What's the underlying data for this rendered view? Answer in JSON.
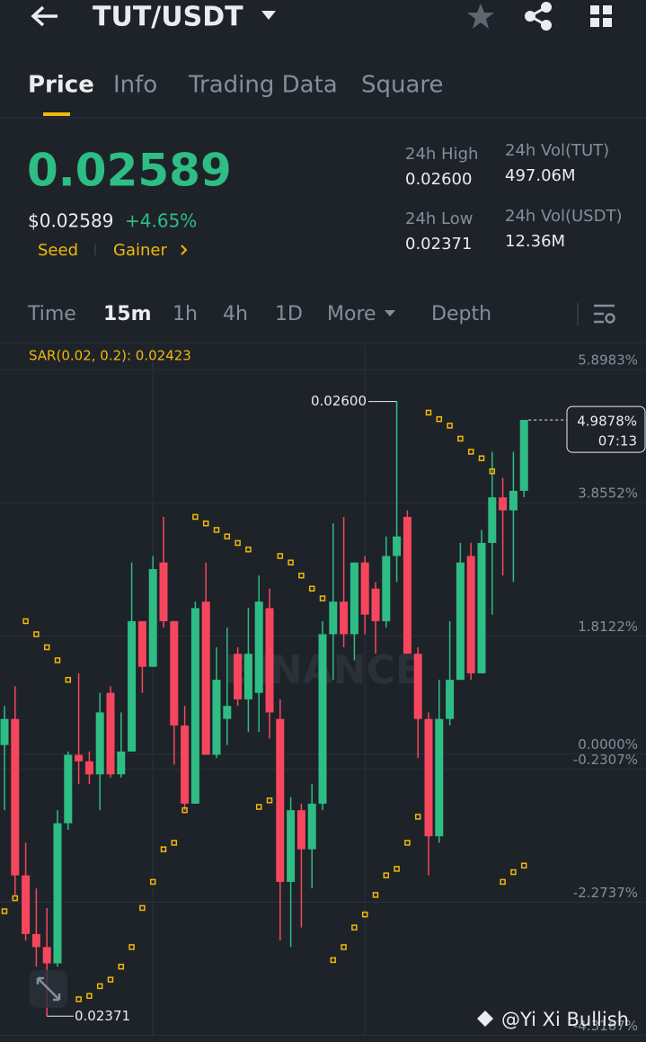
{
  "header": {
    "title": "TUT/USDT"
  },
  "tabs": [
    "Price",
    "Info",
    "Trading Data",
    "Square"
  ],
  "price": {
    "last": "0.02589",
    "usd": "$0.02589",
    "change": "+4.65%",
    "tags": [
      "Seed",
      "Gainer"
    ],
    "stats": [
      {
        "label": "24h High",
        "value": "0.02600"
      },
      {
        "label": "24h Vol(TUT)",
        "value": "497.06M"
      },
      {
        "label": "24h Low",
        "value": "0.02371"
      },
      {
        "label": "24h Vol(USDT)",
        "value": "12.36M"
      }
    ]
  },
  "intervals": [
    "Time",
    "15m",
    "1h",
    "4h",
    "1D",
    "More",
    "Depth"
  ],
  "chart_data": {
    "type": "candlestick",
    "indicator": "SAR(0.02, 0.2): 0.02423",
    "watermark": "BINANCE",
    "high_label": "0.02600",
    "low_label": "0.02371",
    "last_label": "4.9878%",
    "countdown": "07:13",
    "up_color": "#2ebd85",
    "down_color": "#f6465d",
    "sar_color": "#f0b90b",
    "ylim": [
      -4.46,
      6.12
    ],
    "yticks": [
      {
        "value": 5.8983,
        "label": "5.8983%"
      },
      {
        "value": 3.8552,
        "label": "3.8552%"
      },
      {
        "value": 1.8122,
        "label": "1.8122%"
      },
      {
        "value": 0,
        "label": "0.0000%"
      },
      {
        "value": -0.2307,
        "label": "-0.2307%"
      },
      {
        "value": -2.2737,
        "label": "-2.2737%"
      },
      {
        "value": -4.3167,
        "label": "-4.3167%"
      }
    ],
    "open": [
      0.0,
      0.4,
      -2.0,
      -2.9,
      -3.1,
      -3.35,
      -1.2,
      -0.15,
      -0.25,
      -0.45,
      0.8,
      -0.45,
      -0.1,
      1.9,
      1.2,
      2.8,
      1.9,
      0.3,
      -0.9,
      2.2,
      -0.15,
      0.4,
      1.4,
      0.7,
      0.8,
      2.1,
      0.4,
      -2.1,
      -1.0,
      -1.6,
      -0.9,
      1.7,
      2.2,
      1.7,
      2.8,
      2.4,
      1.9,
      2.9,
      3.5,
      1.4,
      0.4,
      -1.4,
      0.4,
      1.0,
      2.9,
      1.1,
      3.1,
      3.8,
      3.6,
      3.9
    ],
    "high": [
      0.6,
      0.9,
      -1.5,
      -2.2,
      -2.5,
      -1.0,
      -0.1,
      1.1,
      -0.1,
      0.8,
      0.9,
      0.5,
      2.8,
      1.9,
      2.9,
      3.5,
      1.9,
      0.6,
      2.2,
      2.8,
      1.5,
      1.8,
      1.5,
      2.1,
      2.6,
      2.4,
      0.7,
      -0.8,
      -0.9,
      -0.6,
      1.9,
      3.4,
      3.5,
      2.8,
      2.9,
      2.5,
      3.2,
      5.27,
      3.6,
      1.5,
      0.5,
      1.0,
      1.9,
      3.1,
      3.1,
      3.3,
      4.5,
      4.1,
      4.5,
      4.9878
    ],
    "low": [
      -1.0,
      -2.3,
      -3.0,
      -3.4,
      -4.16,
      -3.4,
      -1.3,
      -0.6,
      -0.6,
      -1.0,
      -0.5,
      -0.5,
      -0.1,
      0.8,
      1.2,
      1.8,
      -0.3,
      -1.0,
      -0.9,
      -0.1,
      -0.2,
      0.0,
      0.6,
      0.2,
      0.2,
      0.1,
      -3.0,
      -3.1,
      -2.8,
      -2.2,
      -1.0,
      1.0,
      1.5,
      1.3,
      1.7,
      1.4,
      1.8,
      2.5,
      1.4,
      -0.2,
      -2.0,
      -1.5,
      0.3,
      1.0,
      1.0,
      1.1,
      2.0,
      2.6,
      2.5,
      3.8
    ],
    "close": [
      0.4,
      -2.0,
      -2.9,
      -3.1,
      -3.35,
      -1.2,
      -0.15,
      -0.25,
      -0.45,
      0.5,
      -0.45,
      -0.1,
      1.9,
      1.2,
      2.7,
      1.9,
      0.3,
      -0.9,
      2.1,
      -0.15,
      1.0,
      0.6,
      0.7,
      1.4,
      2.2,
      0.5,
      -2.1,
      -1.0,
      -1.6,
      -0.9,
      1.7,
      2.2,
      1.7,
      2.8,
      2.0,
      1.9,
      2.9,
      3.2,
      1.4,
      0.4,
      -1.4,
      0.4,
      1.0,
      2.8,
      1.1,
      3.1,
      3.8,
      3.6,
      3.9,
      4.9878
    ],
    "sar": [
      -2.55,
      -2.35,
      1.9,
      1.7,
      1.5,
      1.3,
      1.0,
      -3.9,
      -3.85,
      -3.7,
      -3.6,
      -3.4,
      -3.1,
      -2.5,
      -2.1,
      -1.6,
      -1.5,
      -1.0,
      3.5,
      3.4,
      3.3,
      3.2,
      3.1,
      3.0,
      -0.95,
      -0.85,
      2.9,
      2.8,
      2.6,
      2.4,
      2.25,
      -3.3,
      -3.1,
      -2.8,
      -2.6,
      -2.3,
      -2.0,
      -1.9,
      -1.5,
      -1.1,
      5.1,
      5.0,
      4.9,
      4.7,
      4.5,
      4.4,
      4.2,
      -2.1,
      -1.95,
      -1.85
    ]
  },
  "footer": {
    "watermark": "@Yi Xi Bullish"
  }
}
